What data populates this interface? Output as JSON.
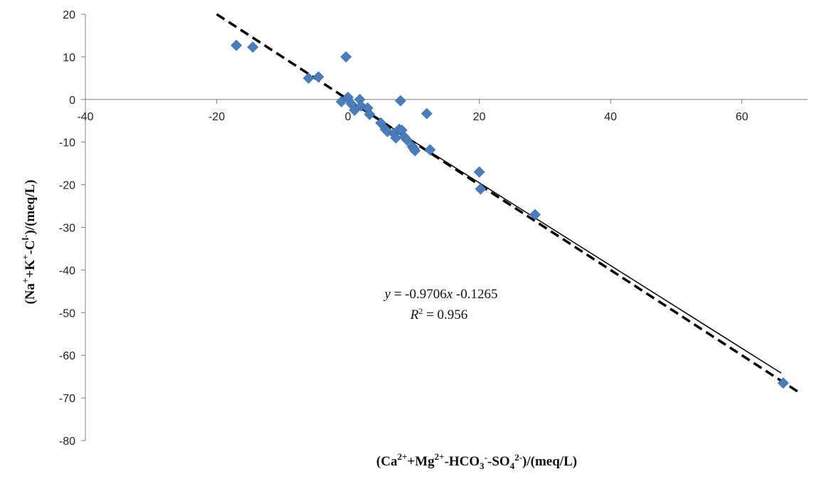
{
  "chart_data": {
    "type": "scatter",
    "x_axis": {
      "min": -40,
      "max": 70,
      "ticks": [
        -40,
        -20,
        0,
        20,
        40,
        60
      ]
    },
    "y_axis": {
      "min": -80,
      "max": 20,
      "ticks": [
        20,
        10,
        0,
        -10,
        -20,
        -30,
        -40,
        -50,
        -60,
        -70,
        -80
      ]
    },
    "xlabel": {
      "prefix": "(Ca",
      "sup1": "2+",
      "mid1": "+Mg",
      "sup2": "2+",
      "mid2": "-HCO",
      "sub3": "3",
      "sup3": "-",
      "mid3": "-SO",
      "sub4": "4",
      "sup4": "2-",
      "suffix": ")/(meq/L)"
    },
    "ylabel": {
      "prefix": "(Na",
      "sup1": "+",
      "mid1": "+K",
      "sup2": "+",
      "mid2": "-C",
      "sup3": "l-",
      "suffix": ")/(meq/L)"
    },
    "equation": {
      "line1": {
        "var": "y",
        "rest": " = -0.9706",
        "var2": "x",
        "rest2": " -0.1265"
      },
      "line2": {
        "var": "R",
        "sup": "2",
        "rest": " = 0.956"
      }
    },
    "marker_color": "#4a7ebb",
    "fit_line": {
      "slope": -0.9706,
      "intercept": -0.1265,
      "x_start": 0,
      "x_end": 66
    },
    "reference_line": {
      "slope": -1,
      "intercept": 0,
      "x_start": -20,
      "x_end": 69
    },
    "points": [
      [
        -17,
        12.7
      ],
      [
        -14.5,
        12.3
      ],
      [
        -6,
        5
      ],
      [
        -4.5,
        5.3
      ],
      [
        -1,
        -0.5
      ],
      [
        -0.3,
        10
      ],
      [
        0,
        0.5
      ],
      [
        0.5,
        -1
      ],
      [
        1,
        -2.5
      ],
      [
        1.8,
        0
      ],
      [
        2,
        -1.5
      ],
      [
        3,
        -2
      ],
      [
        3.3,
        -3.5
      ],
      [
        5,
        -5.5
      ],
      [
        5.7,
        -7
      ],
      [
        6,
        -7.5
      ],
      [
        7,
        -8
      ],
      [
        7.3,
        -9
      ],
      [
        7.8,
        -7
      ],
      [
        8,
        -0.3
      ],
      [
        8.2,
        -7.2
      ],
      [
        8.6,
        -8.8
      ],
      [
        9,
        -9.5
      ],
      [
        9.8,
        -11
      ],
      [
        10,
        -11.5
      ],
      [
        10.2,
        -12
      ],
      [
        12,
        -3.3
      ],
      [
        12.5,
        -11.8
      ],
      [
        20,
        -17
      ],
      [
        20.2,
        -21
      ],
      [
        28.5,
        -27
      ],
      [
        66.3,
        -66.5
      ]
    ]
  }
}
